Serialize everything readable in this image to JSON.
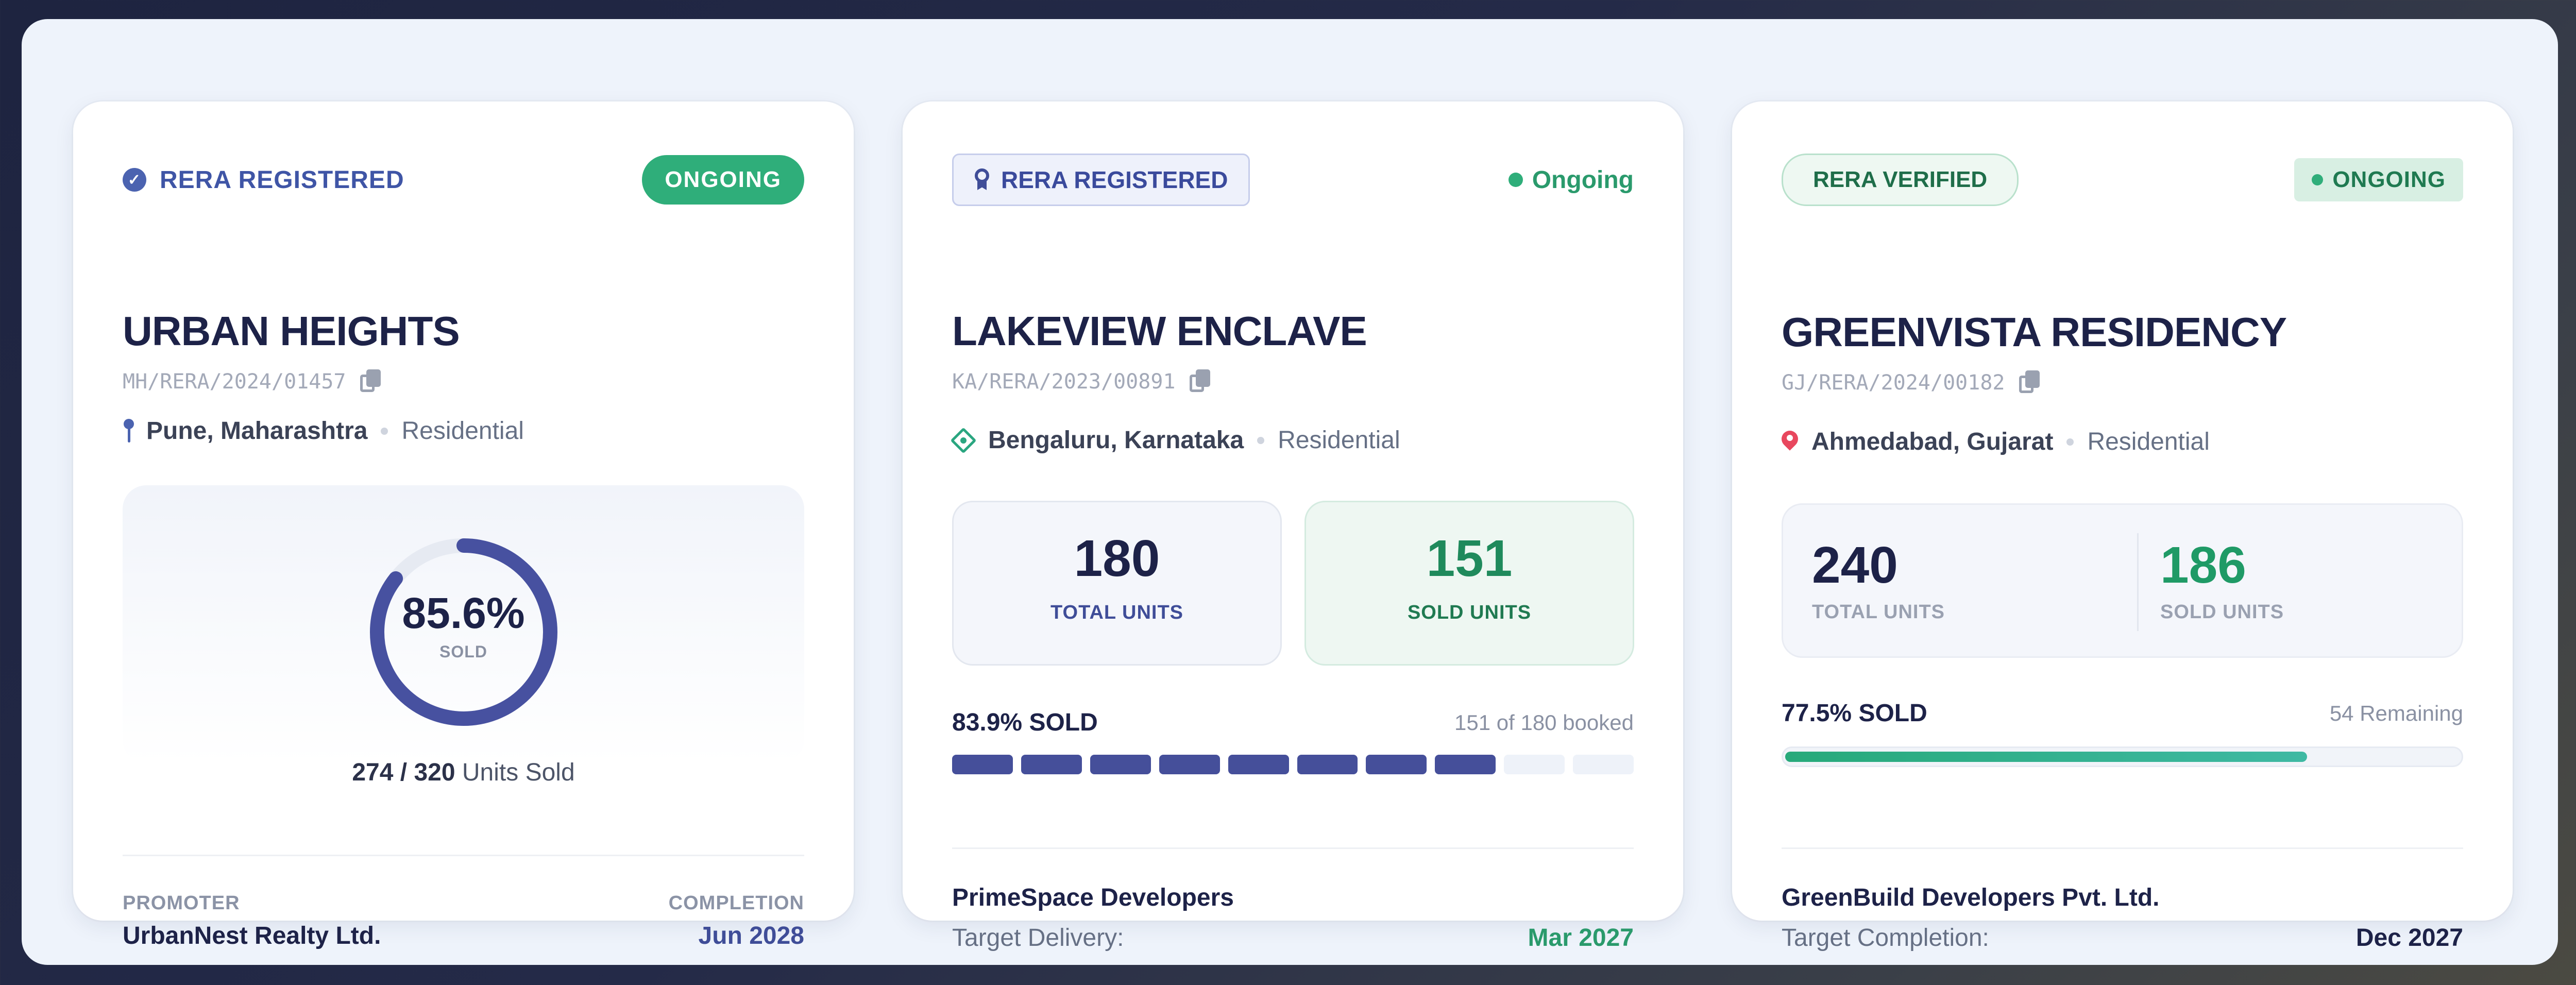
{
  "cards": [
    {
      "rera_label": "RERA REGISTERED",
      "status": "ONGOING",
      "name": "URBAN HEIGHTS",
      "rera_code": "MH/RERA/2024/01457",
      "city": "Pune, Maharashtra",
      "type": "Residential",
      "sold_percent_text": "85.6%",
      "sold_percent": 85.6,
      "sold_label": "SOLD",
      "units_sold_ratio": "274 / 320",
      "units_sold_suffix": "Units Sold",
      "promoter_label": "PROMOTER",
      "promoter": "UrbanNest Realty Ltd.",
      "completion_label": "COMPLETION",
      "completion": "Jun 2028",
      "accent": "#4b63b0"
    },
    {
      "rera_label": "RERA REGISTERED",
      "status": "Ongoing",
      "name": "LAKEVIEW ENCLAVE",
      "rera_code": "KA/RERA/2023/00891",
      "city": "Bengaluru, Karnataka",
      "type": "Residential",
      "total_units": "180",
      "total_units_label": "TOTAL UNITS",
      "sold_units": "151",
      "sold_units_label": "SOLD UNITS",
      "sold_text": "83.9% SOLD",
      "booked_text": "151 of 180 booked",
      "segments_total": 10,
      "segments_filled": 8,
      "developer": "PrimeSpace Developers",
      "delivery_label": "Target Delivery:",
      "delivery": "Mar 2027",
      "accent": "#454f9a"
    },
    {
      "rera_label": "RERA VERIFIED",
      "status": "ONGOING",
      "name": "GREENVISTA RESIDENCY",
      "rera_code": "GJ/RERA/2024/00182",
      "city": "Ahmedabad, Gujarat",
      "type": "Residential",
      "total_units": "240",
      "total_units_label": "TOTAL UNITS",
      "sold_units": "186",
      "sold_units_label": "SOLD UNITS",
      "sold_text": "77.5% SOLD",
      "sold_percent": 77.5,
      "remaining_text": "54 Remaining",
      "developer": "GreenBuild Developers Pvt. Ltd.",
      "completion_label": "Target Completion:",
      "completion": "Dec 2027",
      "accent": "#27a97a"
    }
  ]
}
